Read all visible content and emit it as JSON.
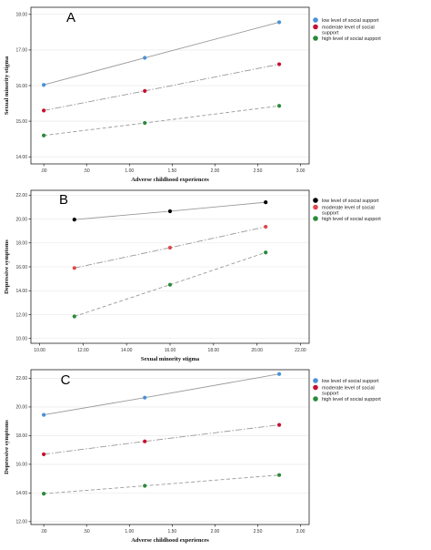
{
  "chart_data": [
    {
      "type": "line",
      "panel_label": "A",
      "xlabel": "Adverse childhood experiences",
      "ylabel": "Sexual minority stigma",
      "xlim": [
        -0.15,
        3.1
      ],
      "ylim": [
        13.8,
        18.2
      ],
      "x_ticks": [
        0,
        0.5,
        1.0,
        1.5,
        2.0,
        2.5,
        3.0
      ],
      "x_tick_labels": [
        ".00",
        ".50",
        "1.00",
        "1.50",
        "2.00",
        "2.50",
        "3.00"
      ],
      "y_ticks": [
        14,
        15,
        16,
        17,
        18
      ],
      "y_tick_labels": [
        "14.00",
        "15.00",
        "16.00",
        "17.00",
        "18.00"
      ],
      "grid": true,
      "legend_position": "right",
      "series": [
        {
          "name": "low level of social support",
          "color": "#4a90d9",
          "line_style": "solid",
          "x": [
            0,
            1.18,
            2.75
          ],
          "values": [
            16.02,
            16.78,
            17.78
          ]
        },
        {
          "name": "moderate level of social support",
          "color": "#c8102e",
          "line_style": "dashdot",
          "x": [
            0,
            1.18,
            2.75
          ],
          "values": [
            15.3,
            15.85,
            16.6
          ]
        },
        {
          "name": "high level of social support",
          "color": "#2a8a3a",
          "line_style": "dashed",
          "x": [
            0,
            1.18,
            2.75
          ],
          "values": [
            14.6,
            14.95,
            15.43
          ]
        }
      ]
    },
    {
      "type": "line",
      "panel_label": "B",
      "xlabel": "Sexual minority stigma",
      "ylabel": "Depressive symptoms",
      "xlim": [
        9.6,
        22.4
      ],
      "ylim": [
        9.6,
        22.4
      ],
      "x_ticks": [
        10,
        12,
        14,
        16,
        18,
        20,
        22
      ],
      "x_tick_labels": [
        "10.00",
        "12.00",
        "14.00",
        "16.00",
        "18.00",
        "20.00",
        "22.00"
      ],
      "y_ticks": [
        10,
        12,
        14,
        16,
        18,
        20,
        22
      ],
      "y_tick_labels": [
        "10.00",
        "12.00",
        "14.00",
        "16.00",
        "18.00",
        "20.00",
        "22.00"
      ],
      "grid": true,
      "legend_position": "right",
      "series": [
        {
          "name": "low level of social support",
          "color": "#000000",
          "line_style": "solid",
          "x": [
            11.6,
            16.0,
            20.4
          ],
          "values": [
            19.95,
            20.65,
            21.4
          ]
        },
        {
          "name": "moderate level of social support",
          "color": "#e0474c",
          "line_style": "dashdot",
          "x": [
            11.6,
            16.0,
            20.4
          ],
          "values": [
            15.9,
            17.6,
            19.35
          ]
        },
        {
          "name": "high level of social support",
          "color": "#2a8a3a",
          "line_style": "dashed",
          "x": [
            11.6,
            16.0,
            20.4
          ],
          "values": [
            11.85,
            14.5,
            17.2
          ]
        }
      ]
    },
    {
      "type": "line",
      "panel_label": "C",
      "xlabel": "Adverse childhood experiences",
      "ylabel": "Depressive symptoms",
      "xlim": [
        -0.15,
        3.1
      ],
      "ylim": [
        11.8,
        22.6
      ],
      "x_ticks": [
        0,
        0.5,
        1.0,
        1.5,
        2.0,
        2.5,
        3.0
      ],
      "x_tick_labels": [
        ".00",
        ".50",
        "1.00",
        "1.50",
        "2.00",
        "2.50",
        "3.00"
      ],
      "y_ticks": [
        12,
        14,
        16,
        18,
        20,
        22
      ],
      "y_tick_labels": [
        "12.00",
        "14.00",
        "16.00",
        "18.00",
        "20.00",
        "22.00"
      ],
      "grid": true,
      "legend_position": "right",
      "series": [
        {
          "name": "low level of social support",
          "color": "#4a90d9",
          "line_style": "solid",
          "x": [
            0,
            1.18,
            2.75
          ],
          "values": [
            19.45,
            20.65,
            22.3
          ]
        },
        {
          "name": "moderate level of social support",
          "color": "#c8102e",
          "line_style": "dashdot",
          "x": [
            0,
            1.18,
            2.75
          ],
          "values": [
            16.7,
            17.6,
            18.75
          ]
        },
        {
          "name": "high level of social support",
          "color": "#2a8a3a",
          "line_style": "dashed",
          "x": [
            0,
            1.18,
            2.75
          ],
          "values": [
            13.95,
            14.5,
            15.25
          ]
        }
      ]
    }
  ]
}
